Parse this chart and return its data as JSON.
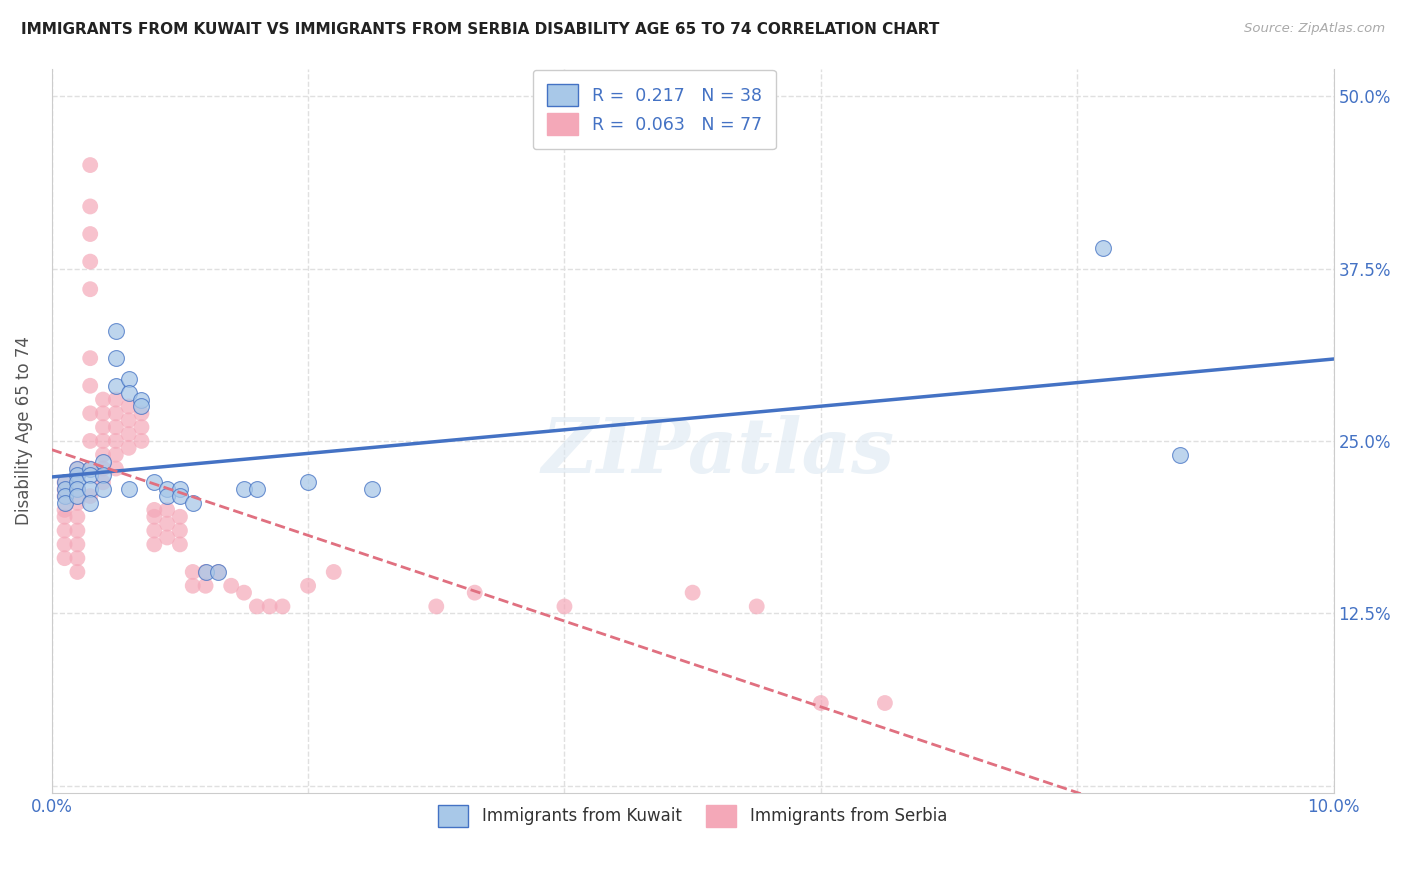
{
  "title": "IMMIGRANTS FROM KUWAIT VS IMMIGRANTS FROM SERBIA DISABILITY AGE 65 TO 74 CORRELATION CHART",
  "source": "Source: ZipAtlas.com",
  "ylabel": "Disability Age 65 to 74",
  "xlim": [
    0.0,
    0.1
  ],
  "ylim": [
    -0.005,
    0.52
  ],
  "x_ticks": [
    0.0,
    0.02,
    0.04,
    0.06,
    0.08,
    0.1
  ],
  "x_tick_labels": [
    "0.0%",
    "",
    "",
    "",
    "",
    "10.0%"
  ],
  "y_ticks": [
    0.0,
    0.125,
    0.25,
    0.375,
    0.5
  ],
  "y_tick_labels_right": [
    "",
    "12.5%",
    "25.0%",
    "37.5%",
    "50.0%"
  ],
  "legend1_label": "Immigrants from Kuwait",
  "legend2_label": "Immigrants from Serbia",
  "R1": "0.217",
  "N1": "38",
  "R2": "0.063",
  "N2": "77",
  "color1": "#a8c8e8",
  "color2": "#f4a8b8",
  "line_color1": "#4472c4",
  "line_color2": "#e07080",
  "kuwait_x": [
    0.001,
    0.001,
    0.001,
    0.001,
    0.002,
    0.002,
    0.002,
    0.002,
    0.002,
    0.003,
    0.003,
    0.003,
    0.003,
    0.004,
    0.004,
    0.004,
    0.005,
    0.005,
    0.005,
    0.006,
    0.006,
    0.006,
    0.007,
    0.007,
    0.008,
    0.009,
    0.009,
    0.01,
    0.01,
    0.011,
    0.012,
    0.013,
    0.015,
    0.016,
    0.02,
    0.025,
    0.082,
    0.088
  ],
  "kuwait_y": [
    0.22,
    0.215,
    0.21,
    0.205,
    0.23,
    0.225,
    0.22,
    0.215,
    0.21,
    0.23,
    0.225,
    0.215,
    0.205,
    0.235,
    0.225,
    0.215,
    0.29,
    0.31,
    0.33,
    0.295,
    0.285,
    0.215,
    0.28,
    0.275,
    0.22,
    0.215,
    0.21,
    0.215,
    0.21,
    0.205,
    0.155,
    0.155,
    0.215,
    0.215,
    0.22,
    0.215,
    0.39,
    0.24
  ],
  "serbia_x": [
    0.001,
    0.001,
    0.001,
    0.001,
    0.001,
    0.001,
    0.001,
    0.001,
    0.002,
    0.002,
    0.002,
    0.002,
    0.002,
    0.002,
    0.002,
    0.002,
    0.002,
    0.003,
    0.003,
    0.003,
    0.003,
    0.003,
    0.003,
    0.003,
    0.003,
    0.003,
    0.003,
    0.003,
    0.004,
    0.004,
    0.004,
    0.004,
    0.004,
    0.004,
    0.004,
    0.005,
    0.005,
    0.005,
    0.005,
    0.005,
    0.005,
    0.006,
    0.006,
    0.006,
    0.006,
    0.007,
    0.007,
    0.007,
    0.008,
    0.008,
    0.008,
    0.008,
    0.009,
    0.009,
    0.009,
    0.01,
    0.01,
    0.01,
    0.011,
    0.011,
    0.012,
    0.012,
    0.013,
    0.014,
    0.015,
    0.016,
    0.017,
    0.018,
    0.02,
    0.022,
    0.03,
    0.033,
    0.04,
    0.05,
    0.055,
    0.06,
    0.065
  ],
  "serbia_y": [
    0.22,
    0.215,
    0.21,
    0.2,
    0.195,
    0.185,
    0.175,
    0.165,
    0.23,
    0.225,
    0.215,
    0.205,
    0.195,
    0.185,
    0.175,
    0.165,
    0.155,
    0.45,
    0.42,
    0.4,
    0.38,
    0.36,
    0.31,
    0.29,
    0.27,
    0.25,
    0.23,
    0.21,
    0.28,
    0.27,
    0.26,
    0.25,
    0.24,
    0.23,
    0.22,
    0.28,
    0.27,
    0.26,
    0.25,
    0.24,
    0.23,
    0.275,
    0.265,
    0.255,
    0.245,
    0.27,
    0.26,
    0.25,
    0.2,
    0.195,
    0.185,
    0.175,
    0.2,
    0.19,
    0.18,
    0.195,
    0.185,
    0.175,
    0.155,
    0.145,
    0.155,
    0.145,
    0.155,
    0.145,
    0.14,
    0.13,
    0.13,
    0.13,
    0.145,
    0.155,
    0.13,
    0.14,
    0.13,
    0.14,
    0.13,
    0.06,
    0.06
  ],
  "watermark": "ZIPatlas",
  "background_color": "#ffffff",
  "grid_color": "#e0e0e0"
}
